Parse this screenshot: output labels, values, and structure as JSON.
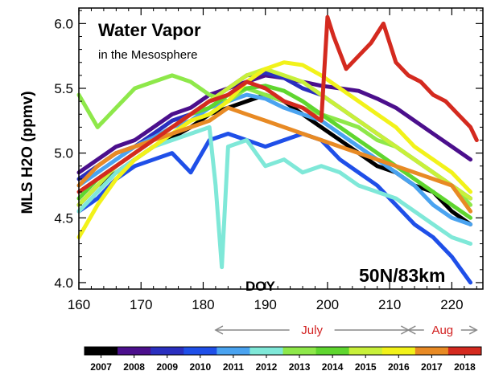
{
  "chart_data": {
    "type": "line",
    "title": "Water Vapor",
    "subtitle": "in the Mesosphere",
    "annotation": "50N/83km",
    "xlabel": "DOY",
    "ylabel": "MLS H2O (ppmv)",
    "xlim": [
      160,
      225
    ],
    "ylim": [
      3.95,
      6.12
    ],
    "xticks": [
      160,
      170,
      180,
      190,
      200,
      210,
      220
    ],
    "xtick_labels": [
      "160",
      "170",
      "180",
      "190",
      "200",
      "210",
      "220"
    ],
    "yticks": [
      4.0,
      4.5,
      5.0,
      5.5,
      6.0
    ],
    "ytick_labels": [
      "4.0",
      "4.5",
      "5.0",
      "5.5",
      "6.0"
    ],
    "grid": false,
    "month_markers": [
      {
        "label": "July",
        "start": 182,
        "end": 213
      },
      {
        "label": "Aug",
        "start": 213,
        "end": 224
      }
    ],
    "series": [
      {
        "name": "2007",
        "color": "#000000",
        "x": [
          160,
          163,
          166,
          169,
          172,
          175,
          178,
          181,
          184,
          187,
          190,
          193,
          196,
          199,
          202,
          205,
          208,
          211,
          214,
          217,
          220,
          223
        ],
        "values": [
          4.6,
          4.75,
          4.85,
          4.95,
          5.05,
          5.12,
          5.2,
          5.3,
          5.35,
          5.4,
          5.45,
          5.4,
          5.3,
          5.2,
          5.1,
          5.0,
          4.9,
          4.85,
          4.75,
          4.7,
          4.55,
          4.45
        ]
      },
      {
        "name": "2008",
        "color": "#4b0f8c",
        "x": [
          160,
          163,
          166,
          169,
          172,
          175,
          178,
          181,
          184,
          187,
          190,
          193,
          196,
          199,
          202,
          205,
          208,
          211,
          214,
          217,
          220,
          223
        ],
        "values": [
          4.85,
          4.95,
          5.05,
          5.1,
          5.2,
          5.3,
          5.35,
          5.45,
          5.5,
          5.55,
          5.6,
          5.58,
          5.55,
          5.52,
          5.5,
          5.48,
          5.42,
          5.35,
          5.25,
          5.15,
          5.05,
          4.95
        ]
      },
      {
        "name": "2009",
        "color": "#2a2fbf",
        "x": [
          160,
          163,
          166,
          169,
          172,
          175,
          178,
          181,
          184,
          187,
          190,
          193,
          196,
          199,
          202,
          205,
          208,
          211,
          214,
          217,
          220,
          223
        ],
        "values": [
          4.8,
          4.9,
          5.0,
          5.05,
          5.15,
          5.25,
          5.3,
          5.4,
          5.5,
          5.6,
          5.62,
          5.58,
          5.5,
          5.45,
          5.35,
          5.25,
          5.15,
          5.05,
          4.95,
          4.85,
          4.75,
          4.65
        ]
      },
      {
        "name": "2010",
        "color": "#1f4fe8",
        "x": [
          160,
          163,
          166,
          169,
          172,
          175,
          178,
          181,
          184,
          187,
          190,
          193,
          196,
          199,
          202,
          205,
          208,
          211,
          214,
          217,
          220,
          223
        ],
        "values": [
          4.55,
          4.65,
          4.8,
          4.9,
          4.95,
          5.0,
          4.85,
          5.1,
          5.15,
          5.1,
          5.05,
          5.1,
          5.15,
          5.1,
          4.95,
          4.85,
          4.75,
          4.6,
          4.45,
          4.35,
          4.2,
          4.0
        ]
      },
      {
        "name": "2011",
        "color": "#4aa3f0",
        "x": [
          160,
          163,
          166,
          169,
          172,
          175,
          178,
          181,
          184,
          187,
          190,
          193,
          196,
          199,
          202,
          205,
          208,
          211,
          214,
          217,
          220,
          223
        ],
        "values": [
          4.75,
          4.85,
          4.95,
          5.05,
          5.12,
          5.2,
          5.25,
          5.35,
          5.4,
          5.45,
          5.42,
          5.35,
          5.3,
          5.25,
          5.15,
          5.05,
          4.95,
          4.85,
          4.75,
          4.6,
          4.5,
          4.45
        ]
      },
      {
        "name": "2012",
        "color": "#7fe8d8",
        "x": [
          160,
          163,
          166,
          169,
          172,
          175,
          178,
          181,
          182,
          183,
          184,
          187,
          190,
          193,
          196,
          199,
          202,
          205,
          208,
          211,
          214,
          217,
          220,
          223
        ],
        "values": [
          4.55,
          4.7,
          4.85,
          4.95,
          5.05,
          5.1,
          5.15,
          5.2,
          4.75,
          4.12,
          5.05,
          5.1,
          4.9,
          4.95,
          4.85,
          4.9,
          4.85,
          4.75,
          4.7,
          4.65,
          4.55,
          4.45,
          4.35,
          4.3
        ]
      },
      {
        "name": "2013",
        "color": "#8ee84a",
        "x": [
          160,
          163,
          166,
          169,
          172,
          175,
          178,
          181,
          184,
          187,
          190,
          193,
          196,
          199,
          202,
          205,
          208,
          211,
          214,
          217,
          220,
          223
        ],
        "values": [
          5.45,
          5.2,
          5.35,
          5.5,
          5.55,
          5.6,
          5.55,
          5.45,
          5.4,
          5.5,
          5.45,
          5.4,
          5.35,
          5.3,
          5.25,
          5.2,
          5.1,
          5.05,
          4.95,
          4.85,
          4.75,
          4.6
        ]
      },
      {
        "name": "2014",
        "color": "#5fd62f",
        "x": [
          160,
          163,
          166,
          169,
          172,
          175,
          178,
          181,
          184,
          187,
          190,
          193,
          196,
          199,
          202,
          205,
          208,
          211,
          214,
          217,
          220,
          223
        ],
        "values": [
          4.65,
          4.8,
          4.9,
          5.0,
          5.1,
          5.2,
          5.3,
          5.35,
          5.45,
          5.5,
          5.52,
          5.48,
          5.4,
          5.3,
          5.2,
          5.1,
          5.0,
          4.9,
          4.8,
          4.7,
          4.6,
          4.5
        ]
      },
      {
        "name": "2015",
        "color": "#c8f03a",
        "x": [
          160,
          163,
          166,
          169,
          172,
          175,
          178,
          181,
          184,
          187,
          190,
          193,
          196,
          199,
          202,
          205,
          208,
          211,
          214,
          217,
          220,
          223
        ],
        "values": [
          4.6,
          4.75,
          4.9,
          5.0,
          5.1,
          5.2,
          5.3,
          5.4,
          5.5,
          5.6,
          5.65,
          5.6,
          5.55,
          5.45,
          5.35,
          5.25,
          5.15,
          5.05,
          4.95,
          4.85,
          4.75,
          4.65
        ]
      },
      {
        "name": "2016",
        "color": "#f2f21a",
        "x": [
          160,
          163,
          166,
          169,
          172,
          175,
          178,
          181,
          184,
          187,
          190,
          193,
          196,
          199,
          202,
          205,
          208,
          211,
          214,
          217,
          220,
          223
        ],
        "values": [
          4.35,
          4.6,
          4.8,
          4.95,
          5.05,
          5.15,
          5.25,
          5.3,
          5.4,
          5.55,
          5.65,
          5.7,
          5.68,
          5.6,
          5.5,
          5.4,
          5.3,
          5.2,
          5.05,
          4.95,
          4.85,
          4.7
        ]
      },
      {
        "name": "2017",
        "color": "#e88a24",
        "x": [
          160,
          163,
          166,
          169,
          172,
          175,
          178,
          181,
          184,
          187,
          190,
          193,
          196,
          199,
          202,
          205,
          208,
          211,
          214,
          217,
          220,
          223
        ],
        "values": [
          4.75,
          4.9,
          5.0,
          5.05,
          5.1,
          5.15,
          5.2,
          5.25,
          5.35,
          5.3,
          5.25,
          5.2,
          5.15,
          5.1,
          5.05,
          5.0,
          4.95,
          4.9,
          4.85,
          4.8,
          4.75,
          4.55
        ]
      },
      {
        "name": "2018",
        "color": "#d42a1f",
        "x": [
          160,
          163,
          166,
          169,
          172,
          175,
          178,
          181,
          184,
          187,
          190,
          193,
          196,
          199,
          200,
          201,
          203,
          205,
          207,
          209,
          211,
          213,
          215,
          217,
          219,
          221,
          223,
          224
        ],
        "values": [
          4.7,
          4.8,
          4.9,
          5.0,
          5.1,
          5.2,
          5.3,
          5.4,
          5.45,
          5.55,
          5.5,
          5.4,
          5.35,
          5.25,
          6.05,
          5.9,
          5.65,
          5.75,
          5.85,
          6.0,
          5.7,
          5.6,
          5.55,
          5.45,
          5.4,
          5.3,
          5.2,
          5.1
        ]
      }
    ]
  }
}
